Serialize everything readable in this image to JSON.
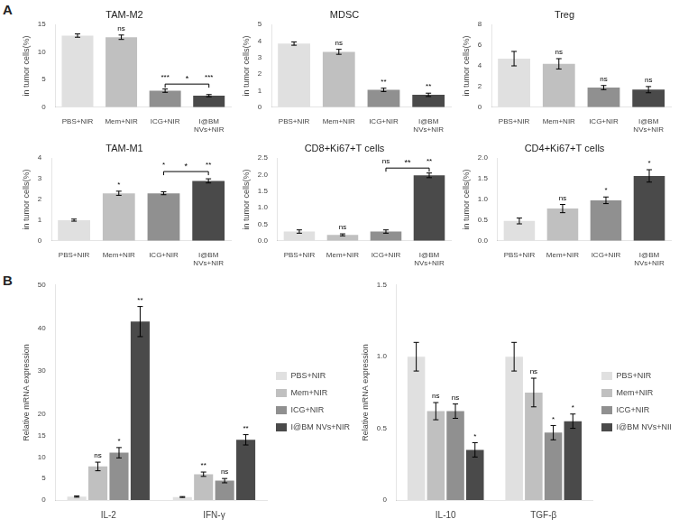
{
  "chart_data": [
    {
      "type": "bar",
      "title": "TAM-M2",
      "categories": [
        "PBS+NIR",
        "Mem+NIR",
        "ICG+NIR",
        "I@BM\nNVs+NIR"
      ],
      "values": [
        13.0,
        12.7,
        3.0,
        2.1
      ],
      "errors": [
        0.3,
        0.4,
        0.3,
        0.2
      ],
      "colors": [
        "#e0e0e0",
        "#c0c0c0",
        "#909090",
        "#4a4a4a"
      ],
      "ylim": [
        0,
        15
      ],
      "yticks": [
        0,
        5,
        10,
        15
      ],
      "ylabel": "in tumor cells(%)",
      "grid": false,
      "annotations": [
        {
          "text": "A"
        },
        {
          "category": "Mem+NIR",
          "text": "ns"
        },
        {
          "category": "ICG+NIR",
          "text": "***"
        },
        {
          "category": "I@BM\nNVs+NIR",
          "text": "***"
        },
        {
          "from": "ICG+NIR",
          "to": "I@BM\nNVs+NIR",
          "y": 4.2,
          "text": "*"
        }
      ]
    },
    {
      "type": "bar",
      "title": "MDSC",
      "categories": [
        "PBS+NIR",
        "Mem+NIR",
        "ICG+NIR",
        "I@BM\nNVs+NIR"
      ],
      "values": [
        3.85,
        3.35,
        1.05,
        0.75
      ],
      "errors": [
        0.1,
        0.15,
        0.1,
        0.1
      ],
      "colors": [
        "#e0e0e0",
        "#c0c0c0",
        "#909090",
        "#4a4a4a"
      ],
      "ylim": [
        0,
        5
      ],
      "yticks": [
        0,
        1,
        2,
        3,
        4,
        5
      ],
      "ylabel": "in tumor cells(%)",
      "grid": false,
      "annotations": [
        {
          "category": "Mem+NIR",
          "text": "ns"
        },
        {
          "category": "ICG+NIR",
          "text": "**"
        },
        {
          "category": "I@BM\nNVs+NIR",
          "text": "**"
        }
      ]
    },
    {
      "type": "bar",
      "title": "Treg",
      "categories": [
        "PBS+NIR",
        "Mem+NIR",
        "ICG+NIR",
        "I@BM\nNVs+NIR"
      ],
      "values": [
        4.7,
        4.2,
        1.9,
        1.7
      ],
      "errors": [
        0.7,
        0.5,
        0.2,
        0.3
      ],
      "colors": [
        "#e0e0e0",
        "#c0c0c0",
        "#909090",
        "#4a4a4a"
      ],
      "ylim": [
        0,
        8
      ],
      "yticks": [
        0,
        2,
        4,
        6,
        8
      ],
      "ylabel": "in tumor cells(%)",
      "grid": false,
      "annotations": [
        {
          "category": "Mem+NIR",
          "text": "ns"
        },
        {
          "category": "ICG+NIR",
          "text": "ns"
        },
        {
          "category": "I@BM\nNVs+NIR",
          "text": "ns"
        }
      ]
    },
    {
      "type": "bar",
      "title": "TAM-M1",
      "categories": [
        "PBS+NIR",
        "Mem+NIR",
        "ICG+NIR",
        "I@BM\nNVs+NIR"
      ],
      "values": [
        1.0,
        2.3,
        2.3,
        2.9
      ],
      "errors": [
        0.05,
        0.1,
        0.07,
        0.1
      ],
      "colors": [
        "#e0e0e0",
        "#c0c0c0",
        "#909090",
        "#4a4a4a"
      ],
      "ylim": [
        0,
        4
      ],
      "yticks": [
        0,
        1,
        2,
        3,
        4
      ],
      "ylabel": "in tumor cells(%)",
      "grid": false,
      "annotations": [
        {
          "category": "Mem+NIR",
          "text": "*"
        },
        {
          "category": "ICG+NIR",
          "text": "*"
        },
        {
          "category": "I@BM\nNVs+NIR",
          "text": "**"
        },
        {
          "from": "ICG+NIR",
          "to": "I@BM\nNVs+NIR",
          "y": 3.35,
          "text": "*"
        }
      ]
    },
    {
      "type": "bar",
      "title": "CD8+Ki67+T cells",
      "categories": [
        "PBS+NIR",
        "Mem+NIR",
        "ICG+NIR",
        "I@BM\nNVs+NIR"
      ],
      "values": [
        0.28,
        0.18,
        0.28,
        1.98
      ],
      "errors": [
        0.05,
        0.03,
        0.05,
        0.07
      ],
      "colors": [
        "#e0e0e0",
        "#c0c0c0",
        "#909090",
        "#4a4a4a"
      ],
      "ylim": [
        0,
        2.5
      ],
      "yticks": [
        {
          "value": 0.0,
          "label": "0.0"
        },
        0.5,
        {
          "value": 1.0,
          "label": "1.0"
        },
        1.5,
        {
          "value": 2.0,
          "label": "2.0"
        },
        2.5
      ],
      "ylabel": "in tumor cells(%)",
      "grid": false,
      "annotations": [
        {
          "category": "Mem+NIR",
          "text": "ns"
        },
        {
          "category": "ICG+NIR",
          "text": "ns"
        },
        {
          "category": "I@BM\nNVs+NIR",
          "text": "**"
        },
        {
          "from": "ICG+NIR",
          "to": "I@BM\nNVs+NIR",
          "y": 2.2,
          "text": "**"
        }
      ]
    },
    {
      "type": "bar",
      "title": "CD4+Ki67+T cells",
      "categories": [
        "PBS+NIR",
        "Mem+NIR",
        "ICG+NIR",
        "I@BM\nNVs+NIR"
      ],
      "values": [
        0.48,
        0.78,
        0.98,
        1.57
      ],
      "errors": [
        0.07,
        0.1,
        0.08,
        0.15
      ],
      "colors": [
        "#e0e0e0",
        "#c0c0c0",
        "#909090",
        "#4a4a4a"
      ],
      "ylim": [
        0,
        2.0
      ],
      "yticks": [
        {
          "value": 0.0,
          "label": "0.0"
        },
        0.5,
        {
          "value": 1.0,
          "label": "1.0"
        },
        1.5,
        {
          "value": 2.0,
          "label": "2.0"
        }
      ],
      "ylabel": "in tumor cells(%)",
      "grid": false,
      "annotations": [
        {
          "category": "Mem+NIR",
          "text": "ns"
        },
        {
          "category": "ICG+NIR",
          "text": "*"
        },
        {
          "category": "I@BM\nNVs+NIR",
          "text": "*"
        }
      ]
    },
    {
      "type": "bar",
      "categories": [
        "IL-2",
        "IFN-γ"
      ],
      "series": [
        {
          "name": "PBS+NIR",
          "color": "#e0e0e0",
          "values": [
            0.8,
            0.7
          ],
          "errors": [
            0.15,
            0.1
          ]
        },
        {
          "name": "Mem+NIR",
          "color": "#c0c0c0",
          "values": [
            7.8,
            6.0
          ],
          "errors": [
            1.0,
            0.5
          ]
        },
        {
          "name": "ICG+NIR",
          "color": "#909090",
          "values": [
            11.0,
            4.5
          ],
          "errors": [
            1.2,
            0.5
          ]
        },
        {
          "name": "I@BM NVs+NIR",
          "color": "#4a4a4a",
          "values": [
            41.5,
            14.0
          ],
          "errors": [
            3.5,
            1.2
          ]
        }
      ],
      "ylim": [
        0,
        50
      ],
      "yticks": [
        0,
        5,
        10,
        15,
        20,
        30,
        40,
        50
      ],
      "ylabel": "Relative mRNA expression",
      "grid": false,
      "legend": "right",
      "annotations": [
        {
          "text": "B"
        },
        {
          "category": "IL-2",
          "series": "Mem+NIR",
          "text": "ns"
        },
        {
          "category": "IL-2",
          "series": "ICG+NIR",
          "text": "*"
        },
        {
          "category": "IL-2",
          "series": "I@BM NVs+NIR",
          "text": "**"
        },
        {
          "category": "IFN-γ",
          "series": "Mem+NIR",
          "text": "**"
        },
        {
          "category": "IFN-γ",
          "series": "ICG+NIR",
          "text": "ns"
        },
        {
          "category": "IFN-γ",
          "series": "I@BM NVs+NIR",
          "text": "**"
        }
      ]
    },
    {
      "type": "bar",
      "categories": [
        "IL-10",
        "TGF-β"
      ],
      "series": [
        {
          "name": "PBS+NIR",
          "color": "#e0e0e0",
          "values": [
            1.0,
            1.0
          ],
          "errors": [
            0.1,
            0.1
          ]
        },
        {
          "name": "Mem+NIR",
          "color": "#c0c0c0",
          "values": [
            0.62,
            0.75
          ],
          "errors": [
            0.06,
            0.1
          ]
        },
        {
          "name": "ICG+NIR",
          "color": "#909090",
          "values": [
            0.62,
            0.47
          ],
          "errors": [
            0.05,
            0.05
          ]
        },
        {
          "name": "I@BM NVs+NIR",
          "color": "#4a4a4a",
          "values": [
            0.35,
            0.55
          ],
          "errors": [
            0.05,
            0.05
          ]
        }
      ],
      "ylim": [
        0,
        1.5
      ],
      "yticks": [
        0,
        0.5,
        {
          "value": 1.0,
          "label": "1.0"
        },
        1.5
      ],
      "ylabel": "Relative mRNA expression",
      "grid": false,
      "legend": "right",
      "annotations": [
        {
          "category": "IL-10",
          "series": "Mem+NIR",
          "text": "ns"
        },
        {
          "category": "IL-10",
          "series": "ICG+NIR",
          "text": "ns"
        },
        {
          "category": "IL-10",
          "series": "I@BM NVs+NIR",
          "text": "*"
        },
        {
          "category": "TGF-β",
          "series": "Mem+NIR",
          "text": "ns"
        },
        {
          "category": "TGF-β",
          "series": "ICG+NIR",
          "text": "*"
        },
        {
          "category": "TGF-β",
          "series": "I@BM NVs+NIR",
          "text": "*"
        }
      ]
    }
  ]
}
